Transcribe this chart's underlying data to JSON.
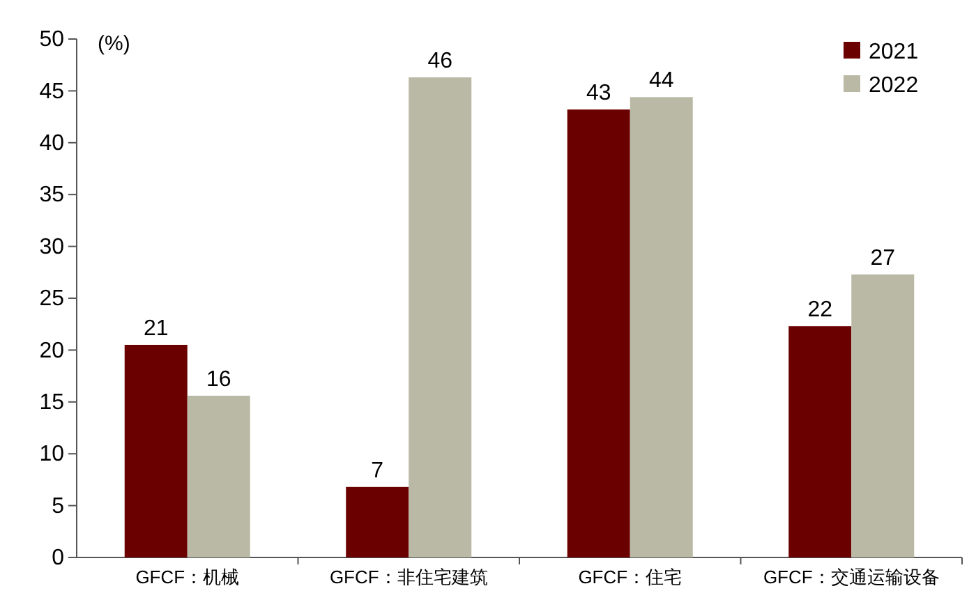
{
  "chart_data": {
    "type": "bar",
    "ylabel": "(%)",
    "categories": [
      "GFCF：机械",
      "GFCF：非住宅建筑",
      "GFCF：住宅",
      "GFCF：交通运输设备"
    ],
    "series": [
      {
        "name": "2021",
        "color": "#6b0000",
        "values": [
          20.5,
          6.8,
          43.2,
          22.3
        ],
        "value_labels": [
          "21",
          "7",
          "43",
          "22"
        ]
      },
      {
        "name": "2022",
        "color": "#b9b9a5",
        "values": [
          15.6,
          46.3,
          44.4,
          27.3
        ],
        "value_labels": [
          "16",
          "46",
          "44",
          "27"
        ]
      }
    ],
    "ylim": [
      0,
      50
    ],
    "yticks": [
      0,
      5,
      10,
      15,
      20,
      25,
      30,
      35,
      40,
      45,
      50
    ],
    "grid": false,
    "legend": "top right"
  }
}
